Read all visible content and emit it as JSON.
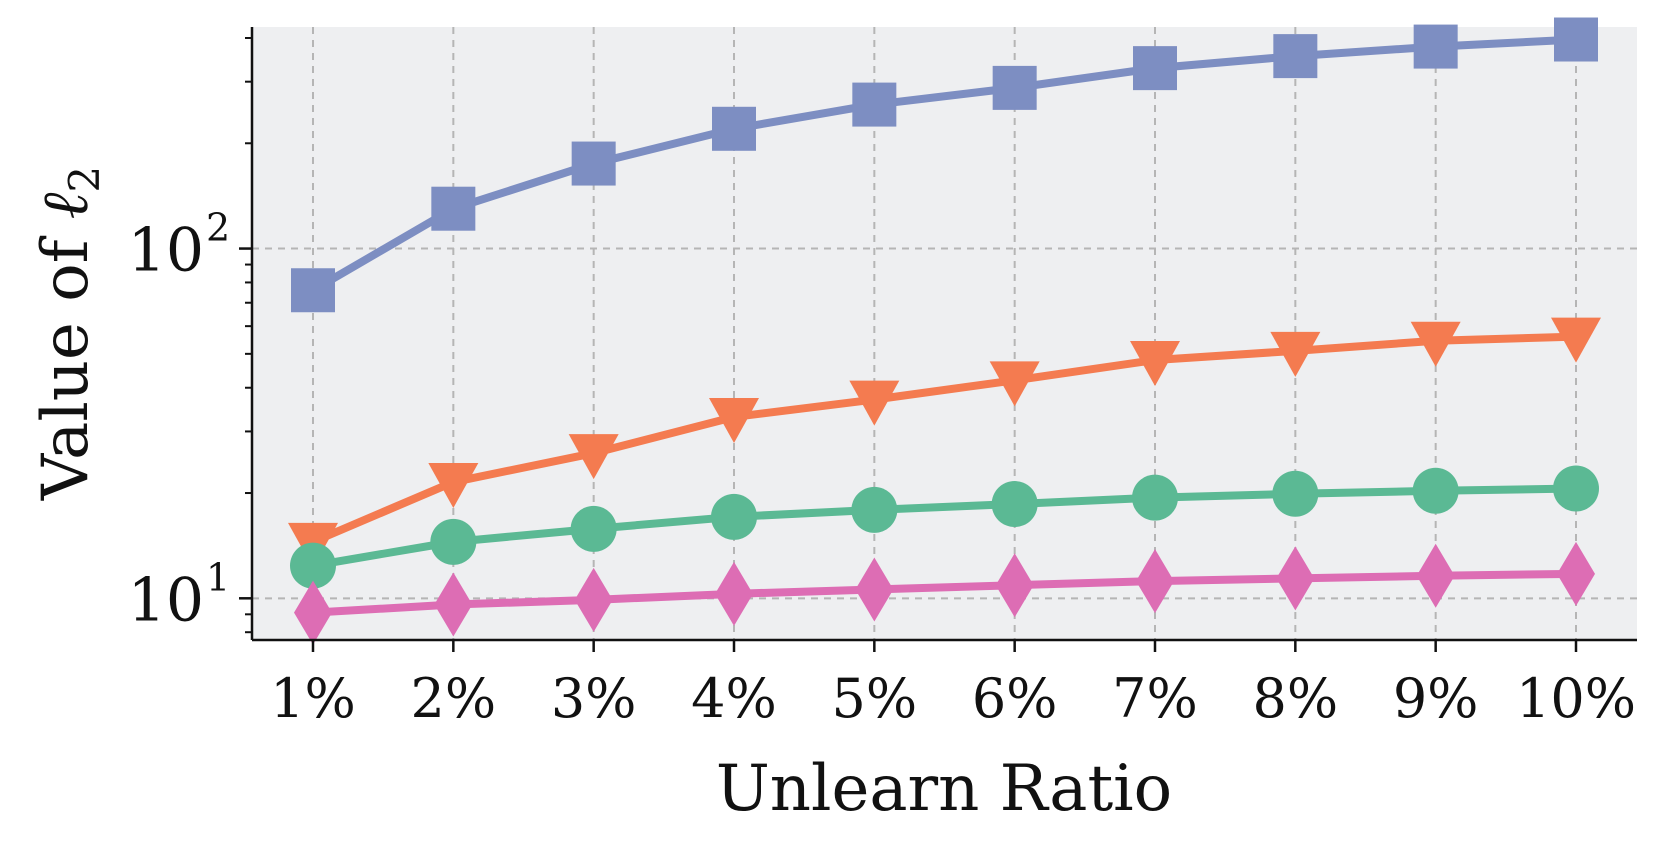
{
  "chart_data": {
    "type": "line",
    "title": "",
    "xlabel": "Unlearn Ratio",
    "ylabel_text": "Value of ",
    "ylabel_math": "ℓ",
    "ylabel_sub": "2",
    "y_scale": "log",
    "ylim": [
      7.6,
      430
    ],
    "y_major_ticks": [
      {
        "value": 10,
        "base": "10",
        "exp": "1"
      },
      {
        "value": 100,
        "base": "10",
        "exp": "2"
      }
    ],
    "grid": true,
    "categories": [
      "1%",
      "2%",
      "3%",
      "4%",
      "5%",
      "6%",
      "7%",
      "8%",
      "9%",
      "10%"
    ],
    "series": [
      {
        "color": "#7D8EC2",
        "marker": "square",
        "values": [
          76,
          130,
          175,
          220,
          258,
          288,
          328,
          355,
          378,
          396
        ]
      },
      {
        "color": "#F47B50",
        "marker": "triangle-down",
        "values": [
          14.5,
          21.5,
          26,
          33,
          37,
          42,
          48,
          51,
          54.5,
          56
        ]
      },
      {
        "color": "#5BB994",
        "marker": "circle",
        "values": [
          12.4,
          14.5,
          15.8,
          17.1,
          17.9,
          18.6,
          19.4,
          19.9,
          20.3,
          20.6
        ]
      },
      {
        "color": "#DD6DB4",
        "marker": "diamond",
        "values": [
          9.1,
          9.6,
          9.9,
          10.3,
          10.6,
          10.9,
          11.2,
          11.4,
          11.6,
          11.75
        ]
      }
    ]
  },
  "style": {
    "plot_background": "#EEEFF1",
    "grid_color": "#B5B5B5",
    "axis_color": "#111111"
  }
}
